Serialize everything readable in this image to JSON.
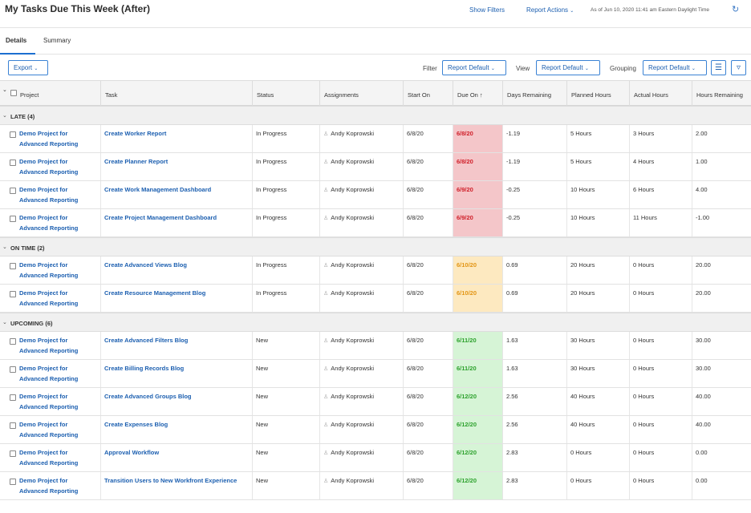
{
  "header": {
    "title": "My Tasks Due This Week (After)",
    "show_filters": "Show Filters",
    "report_actions": "Report Actions",
    "as_of": "As of Jun 10, 2020 11:41 am Eastern Daylight Time"
  },
  "tabs": [
    {
      "label": "Details"
    },
    {
      "label": "Summary"
    }
  ],
  "toolbar": {
    "export": "Export",
    "filter_label": "Filter",
    "filter_value": "Report Default",
    "view_label": "View",
    "view_value": "Report Default",
    "grouping_label": "Grouping",
    "grouping_value": "Report Default"
  },
  "columns": [
    "Project",
    "Task",
    "Status",
    "Assignments",
    "Start On",
    "Due On ↑",
    "Days Remaining",
    "Planned Hours",
    "Actual Hours",
    "Hours Remaining"
  ],
  "groups": [
    {
      "label": "LATE (4)",
      "status": "late",
      "rows": [
        {
          "project": "Demo Project for Advanced Reporting",
          "task": "Create Worker Report",
          "status": "In Progress",
          "assignment": "Andy Koprowski",
          "start": "6/8/20",
          "due": "6/8/20",
          "days": "-1.19",
          "planned": "5 Hours",
          "actual": "3 Hours",
          "remaining": "2.00"
        },
        {
          "project": "Demo Project for Advanced Reporting",
          "task": "Create Planner Report",
          "status": "In Progress",
          "assignment": "Andy Koprowski",
          "start": "6/8/20",
          "due": "6/8/20",
          "days": "-1.19",
          "planned": "5 Hours",
          "actual": "4 Hours",
          "remaining": "1.00"
        },
        {
          "project": "Demo Project for Advanced Reporting",
          "task": "Create Work Management Dashboard",
          "status": "In Progress",
          "assignment": "Andy Koprowski",
          "start": "6/8/20",
          "due": "6/9/20",
          "days": "-0.25",
          "planned": "10 Hours",
          "actual": "6 Hours",
          "remaining": "4.00"
        },
        {
          "project": "Demo Project for Advanced Reporting",
          "task": "Create Project Management Dashboard",
          "status": "In Progress",
          "assignment": "Andy Koprowski",
          "start": "6/8/20",
          "due": "6/9/20",
          "days": "-0.25",
          "planned": "10 Hours",
          "actual": "11 Hours",
          "remaining": "-1.00"
        }
      ]
    },
    {
      "label": "ON TIME (2)",
      "status": "ontime",
      "rows": [
        {
          "project": "Demo Project for Advanced Reporting",
          "task": "Create Advanced Views Blog",
          "status": "In Progress",
          "assignment": "Andy Koprowski",
          "start": "6/8/20",
          "due": "6/10/20",
          "days": "0.69",
          "planned": "20 Hours",
          "actual": "0 Hours",
          "remaining": "20.00"
        },
        {
          "project": "Demo Project for Advanced Reporting",
          "task": "Create Resource Management Blog",
          "status": "In Progress",
          "assignment": "Andy Koprowski",
          "start": "6/8/20",
          "due": "6/10/20",
          "days": "0.69",
          "planned": "20 Hours",
          "actual": "0 Hours",
          "remaining": "20.00"
        }
      ]
    },
    {
      "label": "UPCOMING (6)",
      "status": "upcoming",
      "rows": [
        {
          "project": "Demo Project for Advanced Reporting",
          "task": "Create Advanced Filters Blog",
          "status": "New",
          "assignment": "Andy Koprowski",
          "start": "6/8/20",
          "due": "6/11/20",
          "days": "1.63",
          "planned": "30 Hours",
          "actual": "0 Hours",
          "remaining": "30.00"
        },
        {
          "project": "Demo Project for Advanced Reporting",
          "task": "Create Billing Records Blog",
          "status": "New",
          "assignment": "Andy Koprowski",
          "start": "6/8/20",
          "due": "6/11/20",
          "days": "1.63",
          "planned": "30 Hours",
          "actual": "0 Hours",
          "remaining": "30.00"
        },
        {
          "project": "Demo Project for Advanced Reporting",
          "task": "Create Advanced Groups Blog",
          "status": "New",
          "assignment": "Andy Koprowski",
          "start": "6/8/20",
          "due": "6/12/20",
          "days": "2.56",
          "planned": "40 Hours",
          "actual": "0 Hours",
          "remaining": "40.00"
        },
        {
          "project": "Demo Project for Advanced Reporting",
          "task": "Create Expenses Blog",
          "status": "New",
          "assignment": "Andy Koprowski",
          "start": "6/8/20",
          "due": "6/12/20",
          "days": "2.56",
          "planned": "40 Hours",
          "actual": "0 Hours",
          "remaining": "40.00"
        },
        {
          "project": "Demo Project for Advanced Reporting",
          "task": "Approval Workflow",
          "status": "New",
          "assignment": "Andy Koprowski",
          "start": "6/8/20",
          "due": "6/12/20",
          "days": "2.83",
          "planned": "0 Hours",
          "actual": "0 Hours",
          "remaining": "0.00"
        },
        {
          "project": "Demo Project for Advanced Reporting",
          "task": "Transition Users to New Workfront Experience",
          "status": "New",
          "assignment": "Andy Koprowski",
          "start": "6/8/20",
          "due": "6/12/20",
          "days": "2.83",
          "planned": "0 Hours",
          "actual": "0 Hours",
          "remaining": "0.00"
        }
      ]
    }
  ]
}
